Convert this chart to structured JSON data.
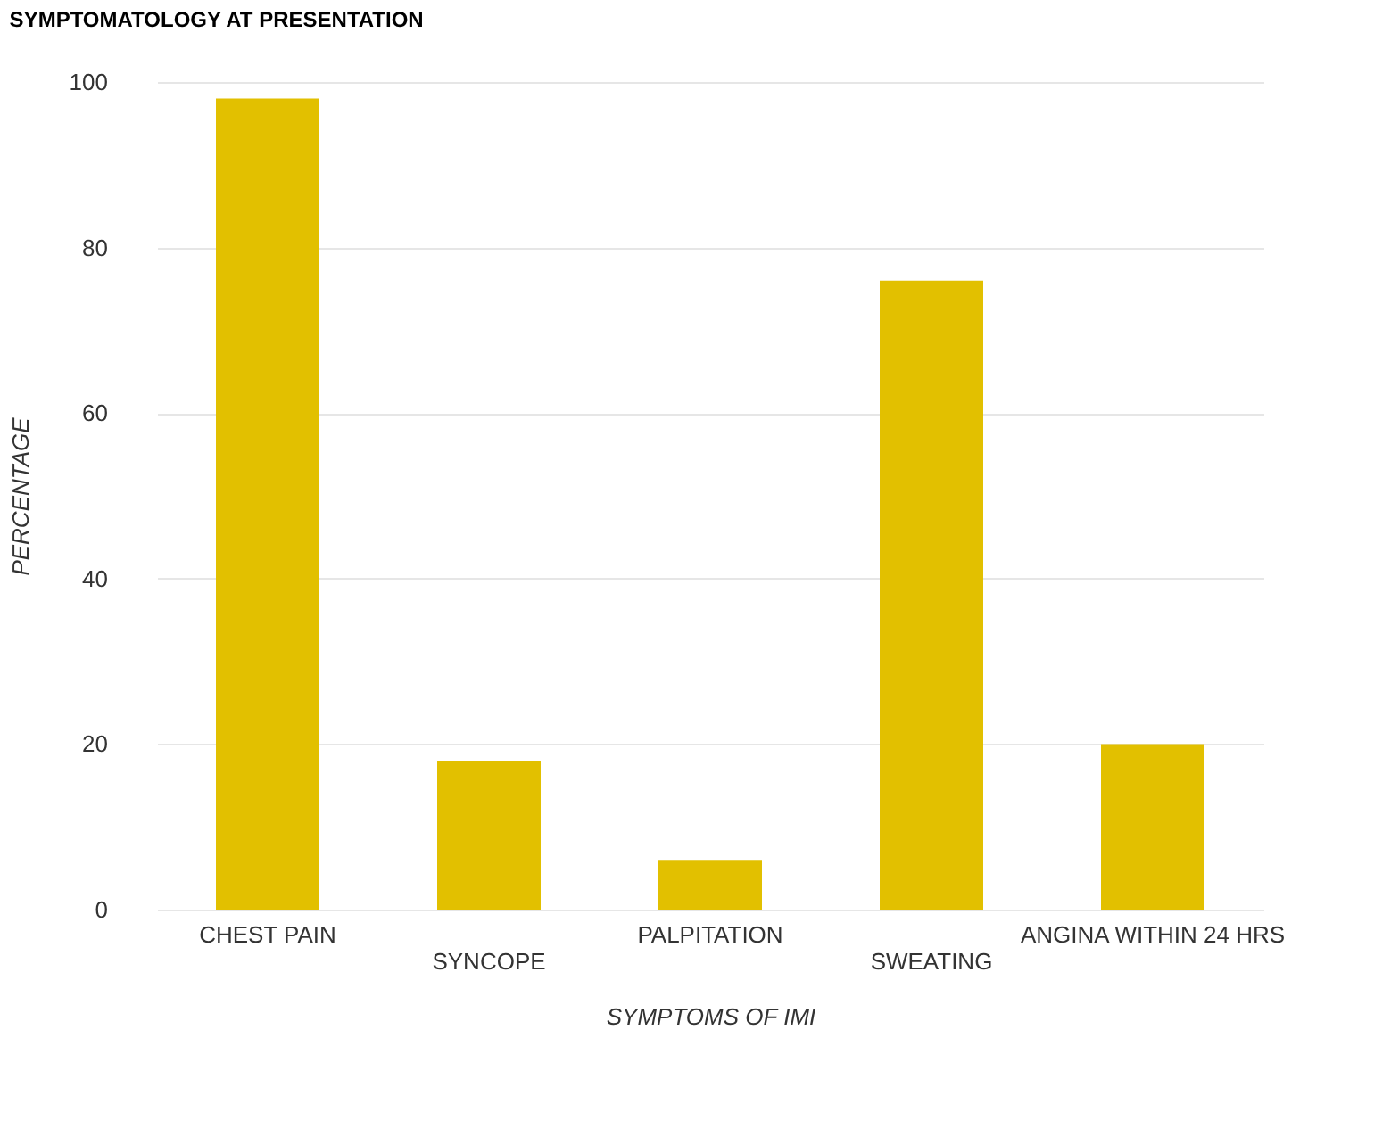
{
  "chart_data": {
    "type": "bar",
    "title": "SYMPTOMATOLOGY AT PRESENTATION",
    "xlabel": "SYMPTOMS OF IMI",
    "ylabel": "PERCENTAGE",
    "categories": [
      "CHEST PAIN",
      "SYNCOPE",
      "PALPITATION",
      "SWEATING",
      "ANGINA WITHIN 24 HRS"
    ],
    "values": [
      98,
      18,
      6,
      76,
      20
    ],
    "color": "#e2c000",
    "ylim": [
      0,
      100
    ],
    "yticks": [
      0,
      20,
      40,
      60,
      80,
      100
    ],
    "grid": "y"
  }
}
